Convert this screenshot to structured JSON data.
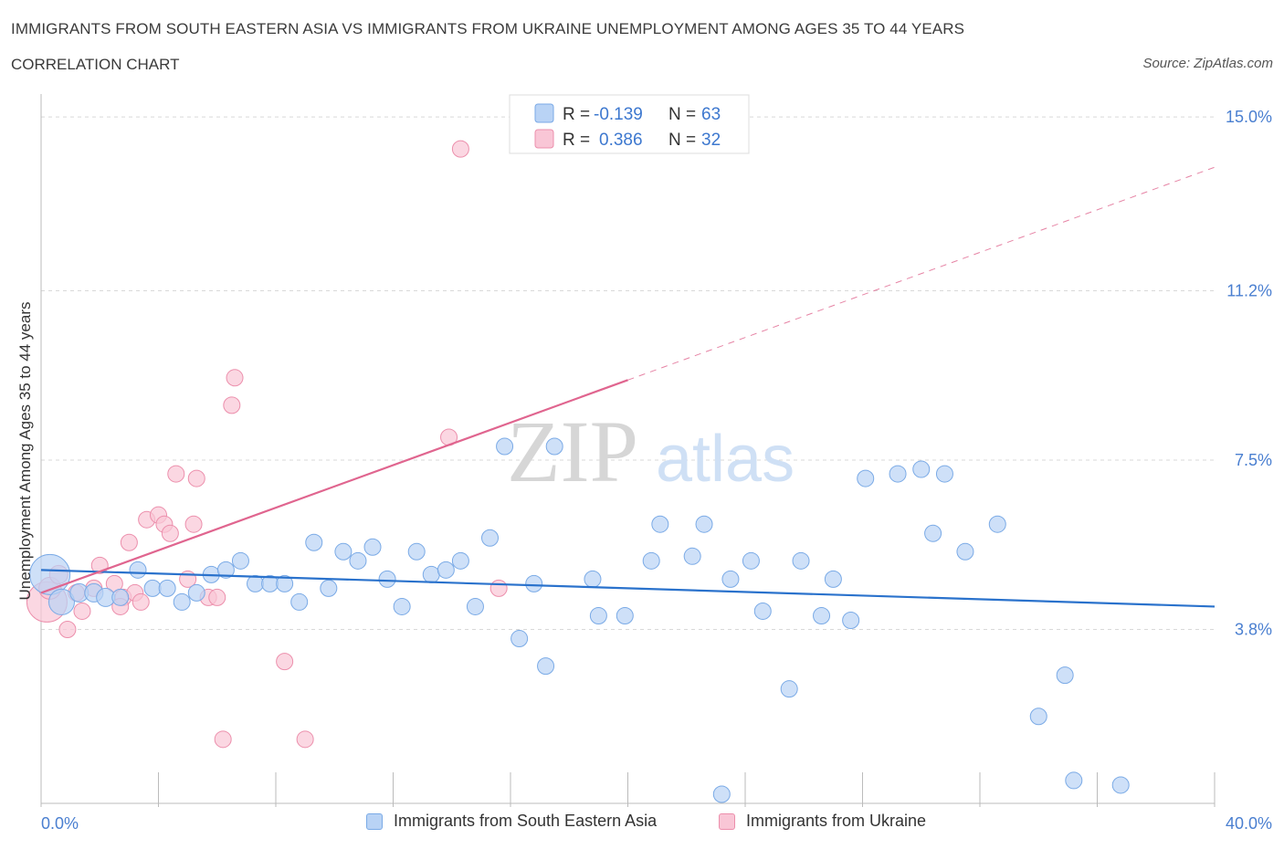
{
  "header": {
    "title": "IMMIGRANTS FROM SOUTH EASTERN ASIA VS IMMIGRANTS FROM UKRAINE UNEMPLOYMENT AMONG AGES 35 TO 44 YEARS",
    "subtitle": "CORRELATION CHART",
    "source": "Source: ZipAtlas.com"
  },
  "watermark": {
    "zip": "ZIP",
    "atlas": "atlas"
  },
  "colors": {
    "sea_fill": "#b9d3f5",
    "sea_stroke": "#7aaae6",
    "sea_line": "#2a72cc",
    "ukr_fill": "#f9c6d6",
    "ukr_stroke": "#ec8fac",
    "ukr_line": "#e0658f",
    "axis_label": "#4a7fd0",
    "grid": "#d9d9d9"
  },
  "legend_box": {
    "rows": [
      {
        "r_label": "R =",
        "r_value": "-0.139",
        "n_label": "N =",
        "n_value": "63"
      },
      {
        "r_label": "R =",
        "r_value": "0.386",
        "n_label": "N =",
        "n_value": "32"
      }
    ]
  },
  "chart_data": {
    "type": "scatter",
    "title": "IMMIGRANTS FROM SOUTH EASTERN ASIA VS IMMIGRANTS FROM UKRAINE UNEMPLOYMENT AMONG AGES 35 TO 44 YEARS",
    "ylabel": "Unemployment Among Ages 35 to 44 years",
    "xlim": [
      0,
      40
    ],
    "ylim": [
      0,
      15.5
    ],
    "x_tick_labels": [
      "0.0%",
      "40.0%"
    ],
    "y_ticks": [
      3.8,
      7.5,
      11.2,
      15.0
    ],
    "y_tick_labels": [
      "3.8%",
      "7.5%",
      "11.2%",
      "15.0%"
    ],
    "grid": true,
    "legend": "top-center",
    "series": [
      {
        "name": "Immigrants from South Eastern Asia",
        "trend": {
          "x": [
            0,
            40
          ],
          "y": [
            5.1,
            4.3
          ]
        },
        "points": [
          [
            0.3,
            5.0,
            22
          ],
          [
            0.7,
            4.4,
            14
          ],
          [
            1.3,
            4.6,
            10
          ],
          [
            1.8,
            4.6,
            10
          ],
          [
            2.2,
            4.5,
            10
          ],
          [
            2.7,
            4.5,
            9
          ],
          [
            3.3,
            5.1,
            9
          ],
          [
            3.8,
            4.7,
            9
          ],
          [
            4.3,
            4.7,
            9
          ],
          [
            4.8,
            4.4,
            9
          ],
          [
            5.3,
            4.6,
            9
          ],
          [
            5.8,
            5.0,
            9
          ],
          [
            6.3,
            5.1,
            9
          ],
          [
            6.8,
            5.3,
            9
          ],
          [
            7.3,
            4.8,
            9
          ],
          [
            7.8,
            4.8,
            9
          ],
          [
            8.3,
            4.8,
            9
          ],
          [
            8.8,
            4.4,
            9
          ],
          [
            9.3,
            5.7,
            9
          ],
          [
            9.8,
            4.7,
            9
          ],
          [
            10.3,
            5.5,
            9
          ],
          [
            10.8,
            5.3,
            9
          ],
          [
            11.3,
            5.6,
            9
          ],
          [
            11.8,
            4.9,
            9
          ],
          [
            12.3,
            4.3,
            9
          ],
          [
            12.8,
            5.5,
            9
          ],
          [
            13.3,
            5.0,
            9
          ],
          [
            13.8,
            5.1,
            9
          ],
          [
            14.3,
            5.3,
            9
          ],
          [
            14.8,
            4.3,
            9
          ],
          [
            15.3,
            5.8,
            9
          ],
          [
            15.8,
            7.8,
            9
          ],
          [
            16.3,
            3.6,
            9
          ],
          [
            16.8,
            4.8,
            9
          ],
          [
            17.2,
            3.0,
            9
          ],
          [
            17.5,
            7.8,
            9
          ],
          [
            18.8,
            4.9,
            9
          ],
          [
            19.0,
            4.1,
            9
          ],
          [
            19.9,
            4.1,
            9
          ],
          [
            20.8,
            5.3,
            9
          ],
          [
            21.1,
            6.1,
            9
          ],
          [
            22.2,
            5.4,
            9
          ],
          [
            22.6,
            6.1,
            9
          ],
          [
            23.5,
            4.9,
            9
          ],
          [
            24.2,
            5.3,
            9
          ],
          [
            24.6,
            4.2,
            9
          ],
          [
            25.5,
            2.5,
            9
          ],
          [
            25.9,
            5.3,
            9
          ],
          [
            26.6,
            4.1,
            9
          ],
          [
            27.0,
            4.9,
            9
          ],
          [
            27.6,
            4.0,
            9
          ],
          [
            28.1,
            7.1,
            9
          ],
          [
            29.2,
            7.2,
            9
          ],
          [
            30.0,
            7.3,
            9
          ],
          [
            30.4,
            5.9,
            9
          ],
          [
            30.8,
            7.2,
            9
          ],
          [
            31.5,
            5.5,
            9
          ],
          [
            32.6,
            6.1,
            9
          ],
          [
            34.0,
            1.9,
            9
          ],
          [
            34.9,
            2.8,
            9
          ],
          [
            35.2,
            0.5,
            9
          ],
          [
            36.8,
            0.4,
            9
          ],
          [
            23.2,
            0.2,
            9
          ]
        ]
      },
      {
        "name": "Immigrants from Ukraine",
        "trend": {
          "x": [
            0,
            40
          ],
          "y": [
            4.6,
            13.9
          ],
          "solid_until": 20
        },
        "points": [
          [
            0.2,
            4.4,
            22
          ],
          [
            0.3,
            4.7,
            12
          ],
          [
            0.6,
            5.0,
            10
          ],
          [
            0.9,
            3.8,
            9
          ],
          [
            1.4,
            4.2,
            9
          ],
          [
            1.8,
            4.7,
            9
          ],
          [
            2.0,
            5.2,
            9
          ],
          [
            2.5,
            4.8,
            9
          ],
          [
            2.8,
            4.5,
            9
          ],
          [
            3.0,
            5.7,
            9
          ],
          [
            3.2,
            4.6,
            9
          ],
          [
            3.4,
            4.4,
            9
          ],
          [
            3.6,
            6.2,
            9
          ],
          [
            4.0,
            6.3,
            9
          ],
          [
            4.2,
            6.1,
            9
          ],
          [
            4.4,
            5.9,
            9
          ],
          [
            4.6,
            7.2,
            9
          ],
          [
            5.0,
            4.9,
            9
          ],
          [
            5.2,
            6.1,
            9
          ],
          [
            5.3,
            7.1,
            9
          ],
          [
            5.7,
            4.5,
            9
          ],
          [
            6.0,
            4.5,
            9
          ],
          [
            6.2,
            1.4,
            9
          ],
          [
            6.5,
            8.7,
            9
          ],
          [
            6.6,
            9.3,
            9
          ],
          [
            8.3,
            3.1,
            9
          ],
          [
            9.0,
            1.4,
            9
          ],
          [
            13.9,
            8.0,
            9
          ],
          [
            15.6,
            4.7,
            9
          ],
          [
            14.3,
            14.3,
            9
          ],
          [
            1.2,
            4.6,
            9
          ],
          [
            2.7,
            4.3,
            9
          ]
        ]
      }
    ]
  }
}
